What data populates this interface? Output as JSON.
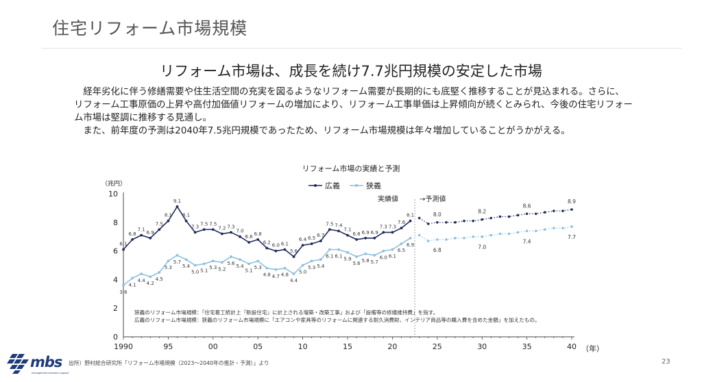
{
  "slide": {
    "title": "住宅リフォーム市場規模",
    "headline": "リフォーム市場は、成長を続け7.7兆円規模の安定した市場",
    "paragraphs": [
      "経年劣化に伴う修繕需要や住生活空間の充実を図るようなリフォーム需要が長期的にも底堅く推移することが見込まれる。さらに、リフォーム工事原価の上昇や高付加価値リフォームの増加により、リフォーム工事単価は上昇傾向が続くとみられ、今後の住宅リフォーム市場は堅調に推移する見通し。",
      "また、前年度の予測は2040年7.5兆円規模であったため、リフォーム市場規模は年々増加していることがうかがえる。"
    ],
    "notes": [
      "狭義のリフォーム市場規模：「住宅着工統計上『新設住宅』に計上される増築・改築工事」および「設備等の修繕維持費」を指す。",
      "広義のリフォーム市場規模：狭義のリフォーム市場規模に「エアコンや家具等のリフォームに関連する耐久消費財、インテリア商品等の購入費を含めた金額」を加えたもの。"
    ],
    "source": "出所）野村総合研究所「リフォーム市場規模（2023〜2040年の推計・予測）」より",
    "page_number": "23",
    "logo": {
      "text": "mbs",
      "sub": "management business support"
    }
  },
  "colors": {
    "broad": "#1f2a5c",
    "narrow": "#8cc0e0",
    "divider": "#999999"
  },
  "chart_data": {
    "type": "line",
    "title": "リフォーム市場の実績と予測",
    "unit_label": "（兆円）",
    "x_unit_label": "（年）",
    "actual_label": "実績値",
    "forecast_label": "→予測値",
    "ylim": [
      0,
      10
    ],
    "y_ticks": [
      "0",
      "2",
      "4",
      "6",
      "8",
      "10"
    ],
    "x_ticks": [
      {
        "year": 1990,
        "label": "1990"
      },
      {
        "year": 1995,
        "label": "95"
      },
      {
        "year": 2000,
        "label": "00"
      },
      {
        "year": 2005,
        "label": "05"
      },
      {
        "year": 2010,
        "label": "10"
      },
      {
        "year": 2015,
        "label": "15"
      },
      {
        "year": 2020,
        "label": "20"
      },
      {
        "year": 2025,
        "label": "25"
      },
      {
        "year": 2030,
        "label": "30"
      },
      {
        "year": 2035,
        "label": "35"
      },
      {
        "year": 2040,
        "label": "40"
      }
    ],
    "x_range": [
      1990,
      2040
    ],
    "actual_end_year": 2022.5,
    "series": [
      {
        "name": "広義",
        "actual_years": [
          1990,
          1991,
          1992,
          1993,
          1994,
          1995,
          1996,
          1997,
          1998,
          1999,
          2000,
          2001,
          2002,
          2003,
          2004,
          2005,
          2006,
          2007,
          2008,
          2009,
          2010,
          2011,
          2012,
          2013,
          2014,
          2015,
          2016,
          2017,
          2018,
          2019,
          2020,
          2021,
          2022
        ],
        "actual_values": [
          6.1,
          6.8,
          7.1,
          6.9,
          7.5,
          8.1,
          9.1,
          8.1,
          7.3,
          7.5,
          7.5,
          7.2,
          7.3,
          7.0,
          6.6,
          6.8,
          6.2,
          6.0,
          6.1,
          5.6,
          6.4,
          6.5,
          6.7,
          7.5,
          7.4,
          7.1,
          6.8,
          6.9,
          6.9,
          7.3,
          7.3,
          7.6,
          8.1
        ],
        "actual_labels": [
          "6.1",
          "6.8",
          "7.1",
          "6.9",
          "7.5",
          "8.1",
          "9.1",
          "8.1",
          "7.3",
          "7.5",
          "7.5",
          "7.2",
          "7.3",
          "7.0",
          "6.6",
          "6.8",
          "6.2",
          "6.0",
          "6.1",
          "5.6",
          "6.4",
          "6.5",
          "6.7",
          "7.5",
          "7.4",
          "7.1",
          "6.8",
          "6.9",
          "6.9",
          "7.3",
          "7.3",
          "7.6",
          "8.1"
        ],
        "forecast_years": [
          2023,
          2024,
          2025,
          2026,
          2027,
          2028,
          2029,
          2030,
          2031,
          2032,
          2033,
          2034,
          2035,
          2036,
          2037,
          2038,
          2039,
          2040
        ],
        "forecast_values": [
          8.3,
          7.9,
          8.0,
          8.0,
          8.0,
          8.1,
          8.1,
          8.2,
          8.3,
          8.4,
          8.4,
          8.5,
          8.6,
          8.6,
          8.7,
          8.8,
          8.8,
          8.9
        ],
        "forecast_labels": [
          {
            "year": 2025,
            "label": "8.0"
          },
          {
            "year": 2030,
            "label": "8.2"
          },
          {
            "year": 2035,
            "label": "8.6"
          },
          {
            "year": 2040,
            "label": "8.9"
          }
        ]
      },
      {
        "name": "狭義",
        "actual_years": [
          1990,
          1991,
          1992,
          1993,
          1994,
          1995,
          1996,
          1997,
          1998,
          1999,
          2000,
          2001,
          2002,
          2003,
          2004,
          2005,
          2006,
          2007,
          2008,
          2009,
          2010,
          2011,
          2012,
          2013,
          2014,
          2015,
          2016,
          2017,
          2018,
          2019,
          2020,
          2021,
          2022
        ],
        "actual_values": [
          3.6,
          4.1,
          4.4,
          4.2,
          4.5,
          5.3,
          5.7,
          5.4,
          5.0,
          5.1,
          5.3,
          5.2,
          5.6,
          5.4,
          5.1,
          5.3,
          4.8,
          4.7,
          4.8,
          4.4,
          5.0,
          5.3,
          5.4,
          6.1,
          6.1,
          5.9,
          5.6,
          5.8,
          5.7,
          6.0,
          6.1,
          6.5,
          6.9
        ],
        "actual_labels": [
          "3.6",
          "4.1",
          "4.4",
          "4.2",
          "4.5",
          "5.3",
          "5.7",
          "5.4",
          "5.0",
          "5.1",
          "5.3",
          "5.2",
          "5.6",
          "5.4",
          "5.1",
          "5.3",
          "4.8",
          "4.7",
          "4.8",
          "4.4",
          "5.0",
          "5.3",
          "5.4",
          "6.1",
          "6.1",
          "5.9",
          "5.6",
          "5.8",
          "5.7",
          "6.0",
          "6.1",
          "6.5",
          "6.9"
        ],
        "forecast_years": [
          2023,
          2024,
          2025,
          2026,
          2027,
          2028,
          2029,
          2030,
          2031,
          2032,
          2033,
          2034,
          2035,
          2036,
          2037,
          2038,
          2039,
          2040
        ],
        "forecast_values": [
          7.1,
          6.7,
          6.8,
          6.8,
          6.9,
          6.9,
          7.0,
          7.0,
          7.1,
          7.2,
          7.2,
          7.3,
          7.4,
          7.4,
          7.5,
          7.6,
          7.6,
          7.7
        ],
        "forecast_labels": [
          {
            "year": 2025,
            "label": "6.8"
          },
          {
            "year": 2030,
            "label": "7.0"
          },
          {
            "year": 2035,
            "label": "7.4"
          },
          {
            "year": 2040,
            "label": "7.7"
          }
        ]
      }
    ]
  }
}
